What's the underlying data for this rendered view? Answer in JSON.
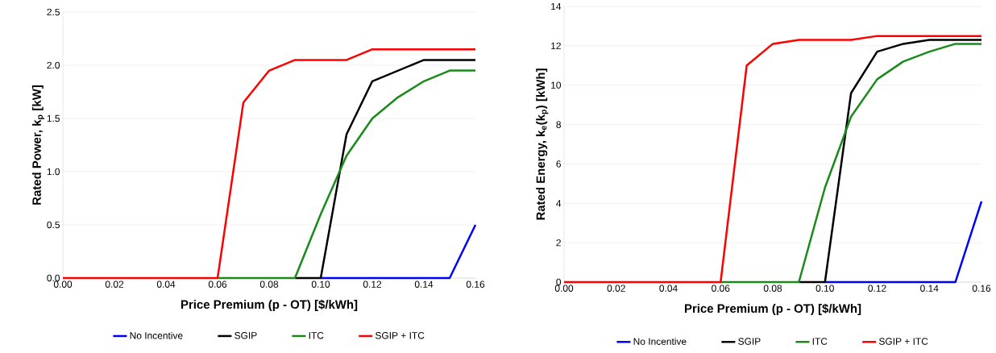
{
  "chart_data": [
    {
      "type": "line",
      "xlabel": "Price Premium (p - OT) [$/kWh]",
      "ylabel": "Rated Power, k$_{p}$ [kW]",
      "x": [
        0,
        0.01,
        0.02,
        0.03,
        0.04,
        0.05,
        0.06,
        0.07,
        0.08,
        0.09,
        0.1,
        0.11,
        0.12,
        0.13,
        0.14,
        0.15,
        0.16
      ],
      "series": [
        {
          "name": "No Incentive",
          "color": "#0000ff",
          "values": [
            null,
            null,
            null,
            null,
            null,
            null,
            null,
            null,
            null,
            null,
            0,
            0,
            0,
            0,
            0,
            0,
            0.5
          ]
        },
        {
          "name": "SGIP",
          "color": "#000000",
          "values": [
            null,
            null,
            null,
            null,
            null,
            null,
            null,
            null,
            null,
            0,
            0,
            1.35,
            1.85,
            1.95,
            2.05,
            2.05,
            2.05
          ]
        },
        {
          "name": "ITC",
          "color": "#1a8a1a",
          "values": [
            null,
            null,
            null,
            null,
            null,
            null,
            0,
            0,
            0,
            0,
            0.6,
            1.15,
            1.5,
            1.7,
            1.85,
            1.95,
            1.95
          ]
        },
        {
          "name": "SGIP + ITC",
          "color": "#ff0000",
          "values": [
            0,
            0,
            0,
            0,
            0,
            0,
            0,
            1.65,
            1.95,
            2.05,
            2.05,
            2.05,
            2.15,
            2.15,
            2.15,
            2.15,
            2.15
          ]
        }
      ],
      "xlim": [
        0,
        0.16
      ],
      "xticks": [
        {
          "value": 0,
          "label": "0.00"
        },
        {
          "value": 0.02,
          "label": "0.02"
        },
        {
          "value": 0.04,
          "label": "0.04"
        },
        {
          "value": 0.06,
          "label": "0.06"
        },
        {
          "value": 0.08,
          "label": "0.08"
        },
        {
          "value": 0.1,
          "label": "0.10"
        },
        {
          "value": 0.12,
          "label": "0.12"
        },
        {
          "value": 0.14,
          "label": "0.14"
        },
        {
          "value": 0.16,
          "label": "0.16"
        }
      ],
      "ylim": [
        0,
        2.5
      ],
      "yticks": [
        {
          "value": 0,
          "label": "0.0"
        },
        0.5,
        {
          "value": 1,
          "label": "1.0"
        },
        1.5,
        {
          "value": 2,
          "label": "2.0"
        },
        2.5
      ],
      "grid": "y",
      "legend": "bottom"
    },
    {
      "type": "line",
      "xlabel": "Price Premium (p - OT) [$/kWh]",
      "ylabel": "Rated Energy, k$_{e}$(k$_{p}$)  [kWh]",
      "x": [
        0,
        0.01,
        0.02,
        0.03,
        0.04,
        0.05,
        0.06,
        0.07,
        0.08,
        0.09,
        0.1,
        0.11,
        0.12,
        0.13,
        0.14,
        0.15,
        0.16
      ],
      "series": [
        {
          "name": "No Incentive",
          "color": "#0000ff",
          "values": [
            null,
            null,
            null,
            null,
            null,
            null,
            null,
            null,
            null,
            null,
            0,
            0,
            0,
            0,
            0,
            0,
            4.1
          ]
        },
        {
          "name": "SGIP",
          "color": "#000000",
          "values": [
            null,
            null,
            null,
            null,
            null,
            null,
            null,
            null,
            null,
            0,
            0,
            9.6,
            11.7,
            12.1,
            12.3,
            12.3,
            12.3
          ]
        },
        {
          "name": "ITC",
          "color": "#1a8a1a",
          "values": [
            null,
            null,
            null,
            null,
            null,
            null,
            0,
            0,
            0,
            0,
            4.8,
            8.4,
            10.3,
            11.2,
            11.7,
            12.1,
            12.1
          ]
        },
        {
          "name": "SGIP + ITC",
          "color": "#ff0000",
          "values": [
            0,
            0,
            0,
            0,
            0,
            0,
            0,
            11.0,
            12.1,
            12.3,
            12.3,
            12.3,
            12.5,
            12.5,
            12.5,
            12.5,
            12.5
          ]
        }
      ],
      "xlim": [
        0,
        0.16
      ],
      "xticks": [
        {
          "value": 0,
          "label": "0.00"
        },
        {
          "value": 0.02,
          "label": "0.02"
        },
        {
          "value": 0.04,
          "label": "0.04"
        },
        {
          "value": 0.06,
          "label": "0.06"
        },
        {
          "value": 0.08,
          "label": "0.08"
        },
        {
          "value": 0.1,
          "label": "0.10"
        },
        {
          "value": 0.12,
          "label": "0.12"
        },
        {
          "value": 0.14,
          "label": "0.14"
        },
        {
          "value": 0.16,
          "label": "0.16"
        }
      ],
      "ylim": [
        0,
        14
      ],
      "yticks": [
        0,
        2,
        4,
        6,
        8,
        10,
        12,
        14
      ],
      "grid": "y",
      "legend": "bottom"
    }
  ]
}
